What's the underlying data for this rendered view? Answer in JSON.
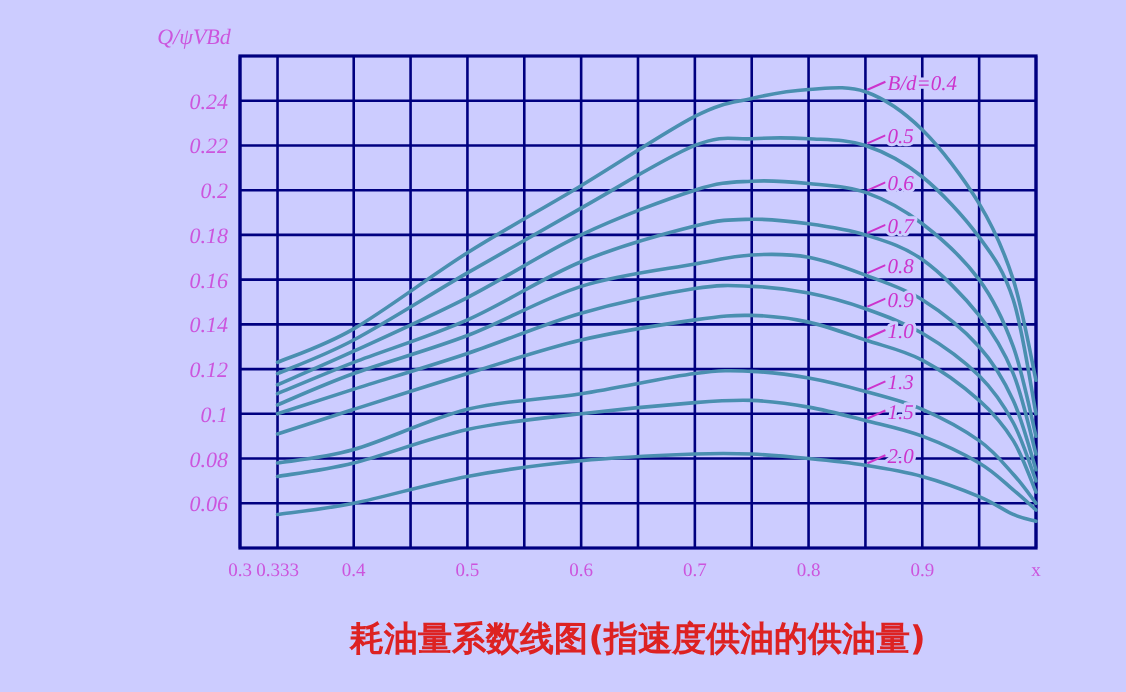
{
  "chart_data": {
    "type": "line",
    "title": "耗油量系数线图(指速度供油的供油量)",
    "ylabel": "Q/ψVBd",
    "x": [
      0.333,
      0.4,
      0.5,
      0.6,
      0.7,
      0.75,
      0.8,
      0.85,
      0.9,
      0.95,
      0.98,
      1.0
    ],
    "series": [
      {
        "name": "B/d=0.4",
        "color": "#4a8fb0",
        "values": [
          0.123,
          0.138,
          0.172,
          0.202,
          0.233,
          0.241,
          0.245,
          0.244,
          0.227,
          0.194,
          0.16,
          0.115
        ]
      },
      {
        "name": "0.5",
        "color": "#4a8fb0",
        "values": [
          0.118,
          0.133,
          0.163,
          0.192,
          0.22,
          0.223,
          0.223,
          0.22,
          0.206,
          0.179,
          0.151,
          0.1
        ]
      },
      {
        "name": "0.6",
        "color": "#4a8fb0",
        "values": [
          0.113,
          0.128,
          0.152,
          0.18,
          0.2,
          0.204,
          0.203,
          0.199,
          0.185,
          0.16,
          0.13,
          0.09
        ]
      },
      {
        "name": "0.7",
        "color": "#4a8fb0",
        "values": [
          0.109,
          0.123,
          0.142,
          0.168,
          0.184,
          0.187,
          0.185,
          0.18,
          0.169,
          0.144,
          0.118,
          0.082
        ]
      },
      {
        "name": "0.8",
        "color": "#4a8fb0",
        "values": [
          0.104,
          0.118,
          0.135,
          0.157,
          0.167,
          0.171,
          0.17,
          0.162,
          0.151,
          0.13,
          0.106,
          0.075
        ]
      },
      {
        "name": "0.9",
        "color": "#4a8fb0",
        "values": [
          0.1,
          0.111,
          0.127,
          0.145,
          0.156,
          0.157,
          0.154,
          0.147,
          0.136,
          0.117,
          0.096,
          0.07
        ]
      },
      {
        "name": "1.0",
        "color": "#4a8fb0",
        "values": [
          0.091,
          0.102,
          0.118,
          0.133,
          0.142,
          0.144,
          0.141,
          0.133,
          0.124,
          0.106,
          0.088,
          0.065
        ]
      },
      {
        "name": "1.3",
        "color": "#4a8fb0",
        "values": [
          0.078,
          0.084,
          0.102,
          0.109,
          0.118,
          0.119,
          0.116,
          0.11,
          0.102,
          0.088,
          0.073,
          0.06
        ]
      },
      {
        "name": "1.5",
        "color": "#4a8fb0",
        "values": [
          0.072,
          0.078,
          0.093,
          0.1,
          0.105,
          0.106,
          0.103,
          0.097,
          0.09,
          0.078,
          0.066,
          0.057
        ]
      },
      {
        "name": "2.0",
        "color": "#4a8fb0",
        "values": [
          0.055,
          0.06,
          0.072,
          0.079,
          0.082,
          0.082,
          0.08,
          0.077,
          0.072,
          0.063,
          0.055,
          0.052
        ]
      }
    ],
    "xlim": [
      0.3,
      1.0
    ],
    "xticks": [
      0.3,
      0.333,
      0.4,
      {
        "value": 0.45,
        "label": null
      },
      0.5,
      {
        "value": 0.55,
        "label": null
      },
      0.6,
      {
        "value": 0.65,
        "label": null
      },
      0.7,
      {
        "value": 0.75,
        "label": null
      },
      0.8,
      {
        "value": 0.85,
        "label": null
      },
      0.9,
      {
        "value": 0.95,
        "label": null
      },
      {
        "value": 1.0,
        "label": "x"
      }
    ],
    "ylim": [
      0.04,
      0.26
    ],
    "yticks": [
      0.06,
      0.08,
      0.1,
      0.12,
      0.14,
      0.16,
      0.18,
      0.2,
      0.22,
      0.24
    ],
    "grid": true,
    "marker": "none",
    "line_style": "solid"
  }
}
